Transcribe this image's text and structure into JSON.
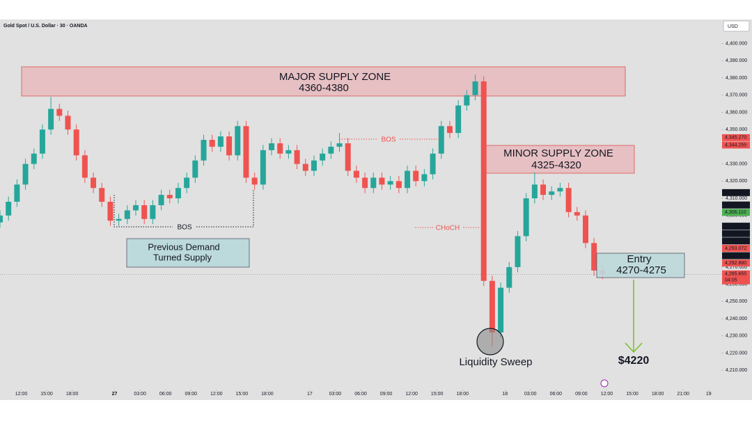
{
  "chart_data": {
    "type": "candlestick",
    "title": "Gold Spot / U.S. Dollar · 30 · OANDA",
    "currency": "USD",
    "up_color": "#26a69a",
    "down_color": "#ef5350",
    "x": [
      0,
      2,
      4,
      6,
      8,
      10,
      12,
      14,
      16,
      18,
      20,
      22,
      24,
      26,
      28,
      30,
      32,
      34,
      36,
      38,
      40,
      42,
      44,
      46,
      48,
      50,
      52,
      54,
      56,
      58,
      60,
      62,
      64,
      66,
      68,
      70,
      72,
      74,
      76,
      78,
      80,
      82,
      84,
      86,
      88,
      90,
      92,
      94,
      96,
      98,
      100,
      102,
      104,
      106,
      108,
      110,
      112,
      114,
      116,
      118,
      120,
      122,
      124,
      126,
      128,
      130,
      132,
      134,
      136,
      138,
      140,
      142
    ],
    "open": [
      4296,
      4300,
      4308,
      4318,
      4330,
      4336,
      4350,
      4362,
      4358,
      4350,
      4335,
      4322,
      4316,
      4308,
      4297,
      4298,
      4303,
      4306,
      4298,
      4306,
      4312,
      4310,
      4316,
      4322,
      4332,
      4344,
      4340,
      4346,
      4335,
      4352,
      4322,
      4318,
      4338,
      4342,
      4336,
      4338,
      4330,
      4326,
      4332,
      4336,
      4340,
      4342,
      4326,
      4322,
      4316,
      4322,
      4318,
      4320,
      4316,
      4326,
      4320,
      4324,
      4336,
      4352,
      4348,
      4364,
      4370,
      4378,
      4262,
      4232,
      4258,
      4270,
      4288,
      4310,
      4318,
      4312,
      4314,
      4316,
      4302,
      4300,
      4284,
      4268
    ],
    "high": [
      4303,
      4311,
      4321,
      4333,
      4339,
      4353,
      4369,
      4365,
      4361,
      4353,
      4338,
      4325,
      4319,
      4311,
      4301,
      4306,
      4309,
      4309,
      4309,
      4315,
      4315,
      4319,
      4325,
      4335,
      4347,
      4347,
      4349,
      4349,
      4355,
      4355,
      4325,
      4341,
      4345,
      4345,
      4341,
      4341,
      4333,
      4335,
      4339,
      4343,
      4348,
      4345,
      4329,
      4325,
      4325,
      4325,
      4323,
      4323,
      4329,
      4329,
      4327,
      4339,
      4355,
      4355,
      4367,
      4373,
      4382,
      4381,
      4265,
      4261,
      4273,
      4291,
      4313,
      4325,
      4321,
      4317,
      4319,
      4319,
      4305,
      4303,
      4287,
      4271
    ],
    "low": [
      4293,
      4297,
      4305,
      4315,
      4327,
      4333,
      4347,
      4355,
      4347,
      4332,
      4319,
      4313,
      4305,
      4294,
      4294,
      4295,
      4300,
      4295,
      4295,
      4303,
      4307,
      4307,
      4313,
      4319,
      4329,
      4337,
      4337,
      4332,
      4332,
      4319,
      4315,
      4315,
      4335,
      4333,
      4333,
      4327,
      4323,
      4323,
      4329,
      4333,
      4337,
      4323,
      4319,
      4313,
      4313,
      4315,
      4315,
      4313,
      4313,
      4317,
      4317,
      4321,
      4333,
      4345,
      4345,
      4361,
      4367,
      4259,
      4224,
      4229,
      4255,
      4267,
      4285,
      4307,
      4309,
      4309,
      4311,
      4299,
      4297,
      4281,
      4265,
      4263
    ],
    "close": [
      4300,
      4308,
      4318,
      4330,
      4336,
      4350,
      4362,
      4358,
      4350,
      4335,
      4322,
      4316,
      4308,
      4297,
      4298,
      4303,
      4306,
      4298,
      4306,
      4312,
      4310,
      4316,
      4322,
      4332,
      4344,
      4340,
      4346,
      4335,
      4352,
      4322,
      4318,
      4338,
      4342,
      4336,
      4338,
      4330,
      4326,
      4332,
      4336,
      4340,
      4342,
      4326,
      4322,
      4316,
      4322,
      4318,
      4320,
      4316,
      4326,
      4320,
      4324,
      4336,
      4352,
      4348,
      4364,
      4370,
      4378,
      4262,
      4232,
      4258,
      4270,
      4288,
      4310,
      4318,
      4312,
      4314,
      4316,
      4302,
      4300,
      4284,
      4268,
      4266
    ],
    "xlim": [
      0,
      170
    ],
    "ylim": [
      4202,
      4414
    ],
    "xticks": [
      {
        "value": 5,
        "label": "12:00"
      },
      {
        "value": 11,
        "label": "15:00"
      },
      {
        "value": 17,
        "label": "18:00"
      },
      27,
      {
        "value": 33,
        "label": "03:00"
      },
      {
        "value": 39,
        "label": "06:00"
      },
      {
        "value": 45,
        "label": "09:00"
      },
      {
        "value": 51,
        "label": "12:00"
      },
      {
        "value": 57,
        "label": "15:00"
      },
      {
        "value": 63,
        "label": "18:00"
      },
      {
        "value": 73,
        "label": "17"
      },
      {
        "value": 79,
        "label": "03:00"
      },
      {
        "value": 85,
        "label": "06:00"
      },
      {
        "value": 91,
        "label": "09:00"
      },
      {
        "value": 97,
        "label": "12:00"
      },
      {
        "value": 103,
        "label": "15:00"
      },
      {
        "value": 109,
        "label": "18:00"
      },
      {
        "value": 119,
        "label": "18"
      },
      {
        "value": 125,
        "label": "03:00"
      },
      {
        "value": 131,
        "label": "06:00"
      },
      {
        "value": 137,
        "label": "09:00"
      },
      {
        "value": 143,
        "label": "12:00"
      },
      {
        "value": 149,
        "label": "15:00"
      },
      {
        "value": 155,
        "label": "18:00"
      },
      {
        "value": 161,
        "label": "21:00"
      },
      {
        "value": 167,
        "label": "19"
      }
    ],
    "xtick_first_day": "16",
    "yticks": [
      {
        "value": 4400,
        "label": "4,400.000"
      },
      {
        "value": 4390,
        "label": "4,390.000"
      },
      {
        "value": 4380,
        "label": "4,380.000"
      },
      {
        "value": 4370,
        "label": "4,370.000"
      },
      {
        "value": 4360,
        "label": "4,360.000"
      },
      {
        "value": 4350,
        "label": "4,350.000"
      },
      {
        "value": 4340,
        "label": "4,340.000"
      },
      {
        "value": 4330,
        "label": "4,330.000"
      },
      {
        "value": 4320,
        "label": "4,320.000"
      },
      {
        "value": 4310,
        "label": "4,310.000"
      },
      {
        "value": 4300,
        "label": "4,300.000"
      },
      {
        "value": 4290,
        "label": "4,290.000"
      },
      {
        "value": 4280,
        "label": "4,280.000"
      },
      {
        "value": 4270,
        "label": "4,270.000"
      },
      {
        "value": 4260,
        "label": "4,260.000"
      },
      {
        "value": 4250,
        "label": "4,250.000"
      },
      {
        "value": 4240,
        "label": "4,240.000"
      },
      {
        "value": 4230,
        "label": "4,230.000"
      },
      {
        "value": 4220,
        "label": "4,220.000"
      },
      {
        "value": 4210,
        "label": "4,210.000"
      }
    ],
    "price_badges": [
      {
        "value": 4345.27,
        "label": "4,345.270",
        "color": "#ef5350"
      },
      {
        "value": 4344.255,
        "label": "4,344.255",
        "color": "#ef5350"
      },
      {
        "value": 4313.32,
        "label": "4,313.320",
        "color": "#131722"
      },
      {
        "value": 4306.11,
        "label": "4,306.110",
        "color": "#131722"
      },
      {
        "value": 4306.11,
        "label": "4,306.110",
        "color": "#4caf50"
      },
      {
        "value": 4293.794,
        "label": "4,293.794",
        "color": "#131722"
      },
      {
        "value": 4293.554,
        "label": "4,293.554",
        "color": "#131722"
      },
      {
        "value": 4293.313,
        "label": "4,293.313",
        "color": "#131722"
      },
      {
        "value": 4293.072,
        "label": "4,293.072",
        "color": "#ef5350"
      },
      {
        "value": 4293.072,
        "label": "4,293.072",
        "color": "#131722"
      },
      {
        "value": 4292.88,
        "label": "4,292.880",
        "color": "#ef5350"
      }
    ],
    "last_price": {
      "value": 4265.655,
      "label": "4,265.655",
      "countdown": "04:05",
      "color": "#ef5350"
    },
    "annotations": {
      "major_zone": [
        "MAJOR SUPPLY ZONE",
        "4360-4380"
      ],
      "minor_zone": [
        "MINOR SUPPLY ZONE",
        "4325-4320"
      ],
      "entry": [
        "Entry",
        "4270-4275"
      ],
      "demand": [
        "Previous Demand",
        "Turned Supply"
      ],
      "bos_low": "BOS",
      "bos_high": "BOS",
      "choch": "CHoCH",
      "sweep": "Liquidity Sweep",
      "target": "$4220"
    }
  }
}
